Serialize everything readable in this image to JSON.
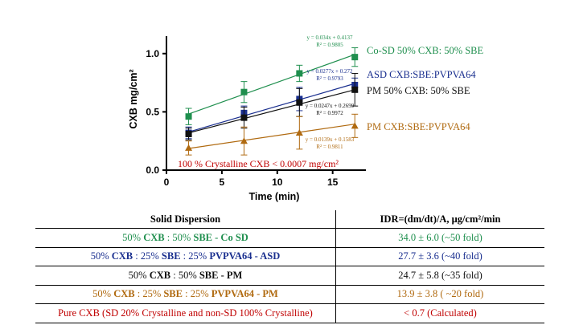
{
  "chart_data": {
    "type": "scatter",
    "xlabel": "Time (min)",
    "ylabel": "CXB mg/cm²",
    "xlim": [
      0,
      18
    ],
    "ylim": [
      0,
      1.15
    ],
    "xticks": [
      "0",
      "5",
      "10",
      "15"
    ],
    "yticks": [
      "0.0",
      "0.5",
      "1.0"
    ],
    "series": [
      {
        "name": "Co-SD 50% CXB: 50% SBE",
        "color": "#1f8f4e",
        "marker": "square",
        "x": [
          2,
          7,
          12,
          17
        ],
        "y": [
          0.46,
          0.67,
          0.83,
          0.97
        ],
        "err": [
          0.07,
          0.09,
          0.07,
          0.08
        ],
        "eq": "y = 0.034x + 0.4137",
        "r2": "R² = 0.9805"
      },
      {
        "name": "ASD CXB:SBE:PVPVA64",
        "color": "#1a2f8f",
        "marker": "square",
        "x": [
          2,
          7,
          12,
          17
        ],
        "y": [
          0.32,
          0.49,
          0.61,
          0.73
        ],
        "err": [
          0.05,
          0.06,
          0.1,
          0.06
        ],
        "eq": "y = 0.0277x + 0.272",
        "r2": "R² = 0.9793"
      },
      {
        "name": "PM 50% CXB: 50% SBE",
        "color": "#111111",
        "marker": "square",
        "x": [
          2,
          7,
          12,
          17
        ],
        "y": [
          0.31,
          0.45,
          0.58,
          0.69
        ],
        "err": [
          0.05,
          0.09,
          0.12,
          0.14
        ],
        "eq": "y = 0.0247x + 0.2699",
        "r2": "R² = 0.9972"
      },
      {
        "name": "PM CXB:SBE:PVPVA64",
        "color": "#b06a10",
        "marker": "triangle",
        "x": [
          2,
          7,
          12,
          17
        ],
        "y": [
          0.19,
          0.25,
          0.32,
          0.38
        ],
        "err": [
          0.06,
          0.12,
          0.14,
          0.1
        ],
        "eq": "y = 0.0139x + 0.1583",
        "r2": "R² = 0.9811"
      }
    ],
    "annotation": "100 % Crystalline CXB < 0.0007 mg/cm²",
    "annotation_color": "#c00000"
  },
  "table": {
    "headers": [
      "Solid Dispersion",
      "IDR=(dm/dt)/A, μg/cm²/min"
    ],
    "rows": [
      {
        "color": "#1f8f4e",
        "parts": [
          [
            "50% ",
            false
          ],
          [
            "CXB",
            true
          ],
          [
            " : 50% ",
            false
          ],
          [
            "SBE - Co SD",
            true
          ]
        ],
        "value": "34.0 ± 6.0 (~50 fold)"
      },
      {
        "color": "#1a2f8f",
        "parts": [
          [
            "50% ",
            false
          ],
          [
            "CXB",
            true
          ],
          [
            " : 25% ",
            false
          ],
          [
            "SBE",
            true
          ],
          [
            " : 25% ",
            false
          ],
          [
            "PVPVA64 - ASD",
            true
          ]
        ],
        "value": "27.7 ± 3.6 (~40 fold)"
      },
      {
        "color": "#111111",
        "parts": [
          [
            "50% ",
            false
          ],
          [
            "CXB",
            true
          ],
          [
            " : 50% ",
            false
          ],
          [
            "SBE - PM",
            true
          ]
        ],
        "value": "24.7 ± 5.8 (~35 fold)"
      },
      {
        "color": "#b06a10",
        "parts": [
          [
            "50% ",
            false
          ],
          [
            "CXB",
            true
          ],
          [
            " : 25% ",
            false
          ],
          [
            "SBE",
            true
          ],
          [
            " : 25% ",
            false
          ],
          [
            "PVPVA64 - PM",
            true
          ]
        ],
        "value": "13.9 ± 3.8 ( ~20 fold)"
      },
      {
        "color": "#c00000",
        "parts": [
          [
            "Pure CXB (SD 20% Crystalline and non-SD 100% Crystalline)",
            false
          ]
        ],
        "value": "< 0.7 (Calculated)"
      }
    ]
  }
}
